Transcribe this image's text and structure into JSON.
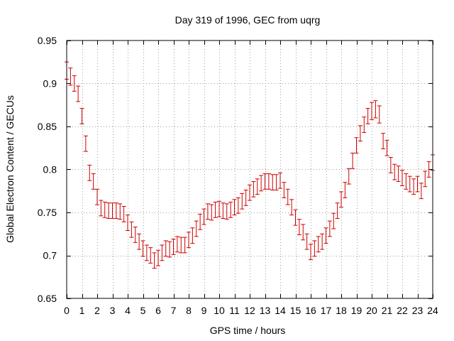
{
  "chart_data": {
    "type": "scatter",
    "title": "Day 319 of 1996, GEC from uqrg",
    "xlabel": "GPS time / hours",
    "ylabel": "Global Electron Content / GECUs",
    "xlim": [
      0,
      24
    ],
    "ylim": [
      0.65,
      0.95
    ],
    "xticks": [
      "0",
      "1",
      "2",
      "3",
      "4",
      "5",
      "6",
      "7",
      "8",
      "9",
      "10",
      "11",
      "12",
      "13",
      "14",
      "15",
      "16",
      "17",
      "18",
      "19",
      "20",
      "21",
      "22",
      "23",
      "24"
    ],
    "yticks": [
      "0.65",
      "0.7",
      "0.75",
      "0.8",
      "0.85",
      "0.9",
      "0.95"
    ],
    "grid": true,
    "error_bars": true,
    "series_color": "#cc0000",
    "series": [
      {
        "x": [
          0.0,
          0.25,
          0.5,
          0.75,
          1.0,
          1.25,
          1.5,
          1.75,
          2.0,
          2.25,
          2.5,
          2.75,
          3.0,
          3.25,
          3.5,
          3.75,
          4.0,
          4.25,
          4.5,
          4.75,
          5.0,
          5.25,
          5.5,
          5.75,
          6.0,
          6.25,
          6.5,
          6.75,
          7.0,
          7.25,
          7.5,
          7.75,
          8.0,
          8.25,
          8.5,
          8.75,
          9.0,
          9.25,
          9.5,
          9.75,
          10.0,
          10.25,
          10.5,
          10.75,
          11.0,
          11.25,
          11.5,
          11.75,
          12.0,
          12.25,
          12.5,
          12.75,
          13.0,
          13.25,
          13.5,
          13.75,
          14.0,
          14.25,
          14.5,
          14.75,
          15.0,
          15.25,
          15.5,
          15.75,
          16.0,
          16.25,
          16.5,
          16.75,
          17.0,
          17.25,
          17.5,
          17.75,
          18.0,
          18.25,
          18.5,
          18.75,
          19.0,
          19.25,
          19.5,
          19.75,
          20.0,
          20.25,
          20.5,
          20.75,
          21.0,
          21.25,
          21.5,
          21.75,
          22.0,
          22.25,
          22.5,
          22.75,
          23.0,
          23.25,
          23.5,
          23.75,
          24.0
        ],
        "y": [
          0.915,
          0.908,
          0.9,
          0.888,
          0.862,
          0.83,
          0.796,
          0.786,
          0.768,
          0.755,
          0.753,
          0.752,
          0.752,
          0.752,
          0.751,
          0.748,
          0.738,
          0.73,
          0.724,
          0.716,
          0.708,
          0.703,
          0.7,
          0.694,
          0.697,
          0.703,
          0.708,
          0.707,
          0.71,
          0.713,
          0.712,
          0.712,
          0.718,
          0.723,
          0.731,
          0.739,
          0.745,
          0.751,
          0.75,
          0.753,
          0.754,
          0.752,
          0.751,
          0.753,
          0.756,
          0.758,
          0.763,
          0.767,
          0.773,
          0.777,
          0.78,
          0.784,
          0.786,
          0.786,
          0.785,
          0.785,
          0.787,
          0.776,
          0.768,
          0.756,
          0.744,
          0.733,
          0.727,
          0.716,
          0.704,
          0.708,
          0.713,
          0.716,
          0.723,
          0.731,
          0.74,
          0.752,
          0.765,
          0.776,
          0.792,
          0.81,
          0.828,
          0.842,
          0.852,
          0.862,
          0.868,
          0.87,
          0.864,
          0.833,
          0.825,
          0.805,
          0.797,
          0.795,
          0.79,
          0.786,
          0.783,
          0.78,
          0.783,
          0.775,
          0.789,
          0.8,
          0.808
        ],
        "err": [
          0.01,
          0.01,
          0.009,
          0.009,
          0.009,
          0.009,
          0.009,
          0.009,
          0.009,
          0.009,
          0.009,
          0.009,
          0.009,
          0.009,
          0.009,
          0.009,
          0.009,
          0.009,
          0.009,
          0.009,
          0.009,
          0.009,
          0.009,
          0.009,
          0.009,
          0.009,
          0.009,
          0.009,
          0.009,
          0.009,
          0.009,
          0.009,
          0.009,
          0.009,
          0.009,
          0.009,
          0.009,
          0.009,
          0.009,
          0.009,
          0.009,
          0.009,
          0.009,
          0.009,
          0.009,
          0.009,
          0.009,
          0.009,
          0.009,
          0.009,
          0.009,
          0.009,
          0.009,
          0.009,
          0.009,
          0.009,
          0.009,
          0.009,
          0.009,
          0.009,
          0.009,
          0.009,
          0.009,
          0.009,
          0.009,
          0.009,
          0.009,
          0.009,
          0.009,
          0.009,
          0.009,
          0.009,
          0.009,
          0.009,
          0.009,
          0.009,
          0.009,
          0.009,
          0.009,
          0.009,
          0.01,
          0.01,
          0.01,
          0.009,
          0.009,
          0.009,
          0.009,
          0.009,
          0.009,
          0.009,
          0.009,
          0.009,
          0.009,
          0.009,
          0.009,
          0.009,
          0.009
        ]
      }
    ]
  }
}
